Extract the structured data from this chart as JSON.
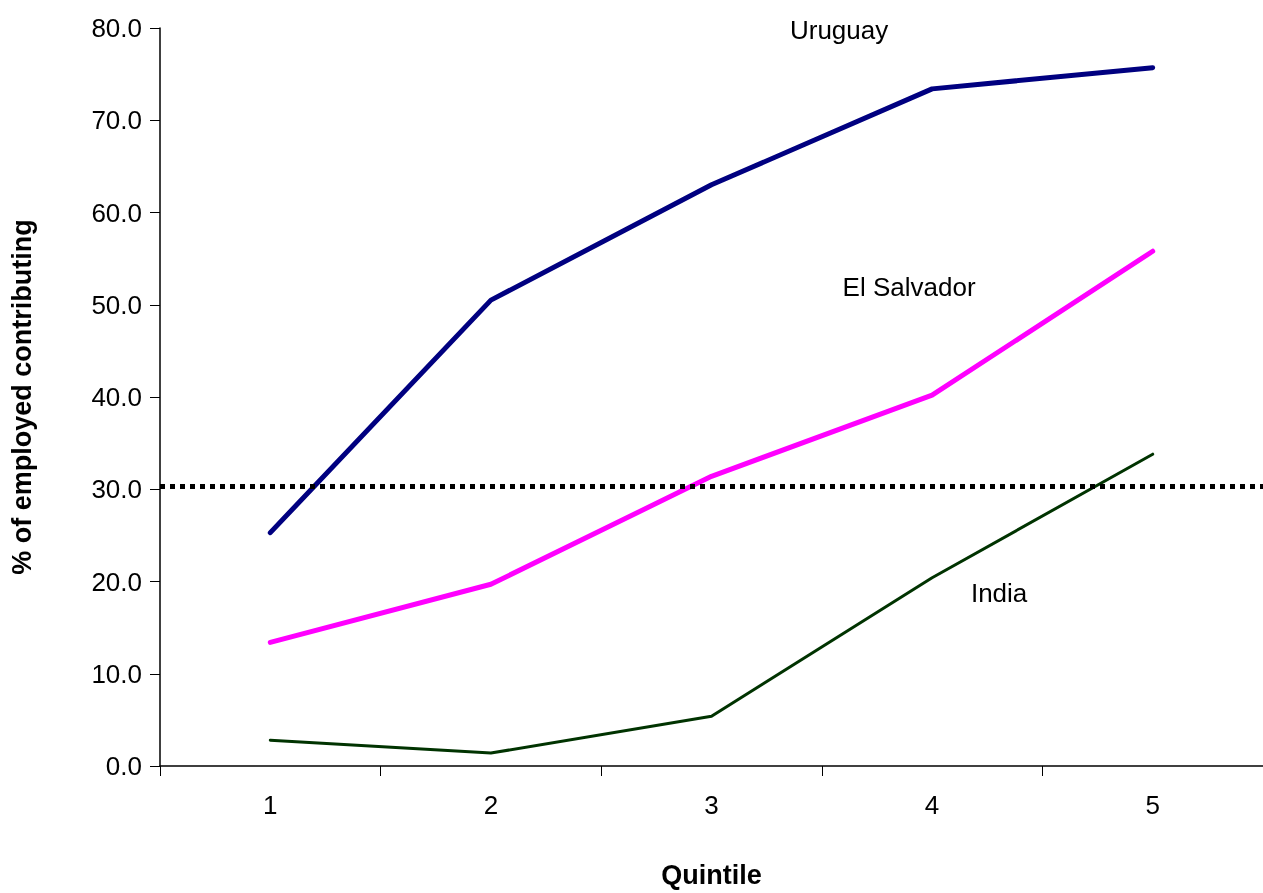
{
  "chart_data": {
    "type": "line",
    "xlabel": "Quintile",
    "ylabel": "% of employed contributing",
    "categories": [
      "1",
      "2",
      "3",
      "4",
      "5"
    ],
    "series": [
      {
        "name": "Uruguay",
        "color": "#000080",
        "values": [
          25.3,
          50.5,
          63.0,
          73.4,
          75.7
        ]
      },
      {
        "name": "El Salvador",
        "color": "#ff00ff",
        "values": [
          13.4,
          19.7,
          31.4,
          40.2,
          55.8
        ]
      },
      {
        "name": "India",
        "color": "#003300",
        "values": [
          2.8,
          1.4,
          5.4,
          20.4,
          33.8
        ]
      }
    ],
    "ylim": [
      0,
      80
    ],
    "yticks": [
      {
        "value": 0,
        "label": "0.0"
      },
      {
        "value": 10,
        "label": "10.0"
      },
      {
        "value": 20,
        "label": "20.0"
      },
      {
        "value": 30,
        "label": "30.0"
      },
      {
        "value": 40,
        "label": "40.0"
      },
      {
        "value": 50,
        "label": "50.0"
      },
      {
        "value": 60,
        "label": "60.0"
      },
      {
        "value": 70,
        "label": "70.0"
      },
      {
        "value": 80,
        "label": "80.0"
      }
    ],
    "ref_lines": [
      {
        "axis": "y",
        "value": 30.3,
        "color": "#000000",
        "line_style": "dotted"
      }
    ],
    "grid": false,
    "legend": false,
    "marker": "none",
    "line_style": "solid"
  }
}
